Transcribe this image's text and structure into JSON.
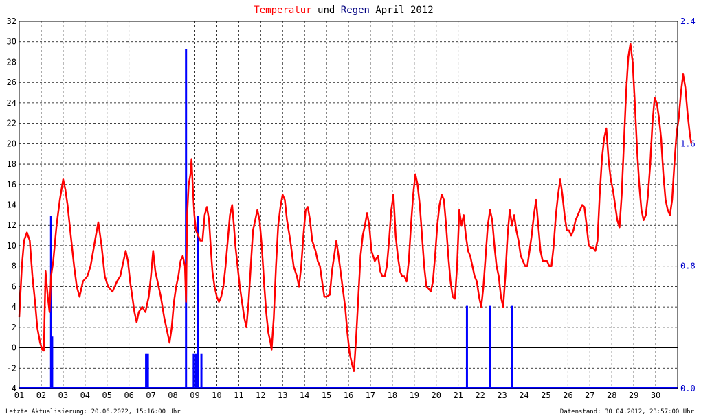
{
  "title": {
    "word1": "Temperatur",
    "word2": " und ",
    "word3": "Regen",
    "word4": " April 2012"
  },
  "footer": {
    "left": "Letzte Aktualisierung: 20.06.2022, 15:16:00 Uhr",
    "right": "Datenstand: 30.04.2012, 23:57:00 Uhr"
  },
  "colors": {
    "temperature": "#ff0000",
    "rain": "#0000ff",
    "title_temperature": "#ff0000",
    "title_rain": "#000080"
  },
  "chart_data": {
    "type": "line",
    "title": "Temperatur und Regen April 2012",
    "grid": true,
    "x_tick_labels": [
      "01",
      "02",
      "03",
      "04",
      "05",
      "06",
      "07",
      "08",
      "09",
      "10",
      "11",
      "12",
      "13",
      "14",
      "15",
      "16",
      "17",
      "18",
      "19",
      "20",
      "21",
      "22",
      "23",
      "24",
      "25",
      "26",
      "27",
      "28",
      "29",
      "30"
    ],
    "x_range_days": [
      1,
      31
    ],
    "y_left": {
      "ticks": [
        -4,
        -2,
        0,
        2,
        4,
        6,
        8,
        10,
        12,
        14,
        16,
        18,
        20,
        22,
        24,
        26,
        28,
        30,
        32
      ],
      "ylim": [
        -4,
        32
      ]
    },
    "y_right": {
      "ticks": [
        "0.0",
        "0.8",
        "1.6",
        "2.4"
      ],
      "ylim": [
        0,
        2.4
      ]
    },
    "series": [
      {
        "name": "Temperatur",
        "axis": "left",
        "points": [
          [
            1.0,
            3.0
          ],
          [
            1.12,
            8.0
          ],
          [
            1.22,
            10.5
          ],
          [
            1.35,
            11.3
          ],
          [
            1.48,
            10.5
          ],
          [
            1.6,
            7.0
          ],
          [
            1.72,
            4.5
          ],
          [
            1.82,
            2.0
          ],
          [
            1.95,
            0.5
          ],
          [
            2.05,
            -0.2
          ],
          [
            2.12,
            -0.3
          ],
          [
            2.2,
            7.5
          ],
          [
            2.3,
            5.0
          ],
          [
            2.38,
            3.5
          ],
          [
            2.45,
            7.0
          ],
          [
            2.55,
            8.5
          ],
          [
            2.7,
            12.0
          ],
          [
            2.85,
            14.5
          ],
          [
            3.0,
            16.5
          ],
          [
            3.1,
            15.5
          ],
          [
            3.2,
            14.0
          ],
          [
            3.35,
            11.0
          ],
          [
            3.5,
            8.0
          ],
          [
            3.62,
            6.0
          ],
          [
            3.75,
            5.0
          ],
          [
            3.9,
            6.5
          ],
          [
            4.1,
            7.0
          ],
          [
            4.25,
            8.0
          ],
          [
            4.45,
            10.5
          ],
          [
            4.6,
            12.3
          ],
          [
            4.75,
            10.0
          ],
          [
            4.9,
            7.0
          ],
          [
            5.05,
            6.0
          ],
          [
            5.25,
            5.5
          ],
          [
            5.45,
            6.5
          ],
          [
            5.6,
            7.0
          ],
          [
            5.75,
            8.5
          ],
          [
            5.85,
            9.5
          ],
          [
            5.95,
            8.5
          ],
          [
            6.05,
            6.5
          ],
          [
            6.15,
            5.0
          ],
          [
            6.25,
            3.5
          ],
          [
            6.35,
            2.5
          ],
          [
            6.45,
            3.5
          ],
          [
            6.6,
            4.0
          ],
          [
            6.75,
            3.5
          ],
          [
            6.9,
            5.0
          ],
          [
            7.0,
            7.0
          ],
          [
            7.1,
            9.5
          ],
          [
            7.2,
            7.5
          ],
          [
            7.3,
            6.5
          ],
          [
            7.45,
            5.0
          ],
          [
            7.6,
            3.0
          ],
          [
            7.75,
            1.5
          ],
          [
            7.85,
            0.5
          ],
          [
            7.95,
            2.0
          ],
          [
            8.05,
            4.5
          ],
          [
            8.15,
            6.0
          ],
          [
            8.25,
            7.0
          ],
          [
            8.35,
            8.5
          ],
          [
            8.45,
            9.0
          ],
          [
            8.55,
            8.0
          ],
          [
            8.6,
            4.5
          ],
          [
            8.65,
            13.0
          ],
          [
            8.72,
            16.0
          ],
          [
            8.8,
            17.0
          ],
          [
            8.85,
            18.5
          ],
          [
            8.9,
            16.0
          ],
          [
            8.98,
            13.0
          ],
          [
            9.05,
            11.5
          ],
          [
            9.15,
            11.0
          ],
          [
            9.25,
            10.5
          ],
          [
            9.35,
            10.5
          ],
          [
            9.45,
            13.0
          ],
          [
            9.55,
            13.8
          ],
          [
            9.65,
            12.5
          ],
          [
            9.72,
            10.0
          ],
          [
            9.8,
            7.5
          ],
          [
            9.9,
            6.0
          ],
          [
            10.0,
            5.0
          ],
          [
            10.1,
            4.5
          ],
          [
            10.2,
            5.0
          ],
          [
            10.3,
            6.0
          ],
          [
            10.4,
            8.0
          ],
          [
            10.5,
            10.5
          ],
          [
            10.6,
            13.0
          ],
          [
            10.7,
            14.0
          ],
          [
            10.78,
            12.0
          ],
          [
            10.85,
            10.0
          ],
          [
            10.95,
            8.0
          ],
          [
            11.05,
            6.0
          ],
          [
            11.15,
            4.5
          ],
          [
            11.25,
            3.0
          ],
          [
            11.35,
            2.0
          ],
          [
            11.45,
            4.5
          ],
          [
            11.55,
            8.0
          ],
          [
            11.65,
            11.5
          ],
          [
            11.75,
            12.5
          ],
          [
            11.85,
            13.5
          ],
          [
            11.95,
            12.5
          ],
          [
            12.05,
            10.0
          ],
          [
            12.15,
            6.5
          ],
          [
            12.25,
            3.5
          ],
          [
            12.35,
            1.5
          ],
          [
            12.45,
            0.5
          ],
          [
            12.5,
            -0.2
          ],
          [
            12.6,
            3.0
          ],
          [
            12.7,
            8.0
          ],
          [
            12.8,
            12.0
          ],
          [
            12.9,
            13.8
          ],
          [
            13.0,
            15.0
          ],
          [
            13.1,
            14.5
          ],
          [
            13.2,
            12.5
          ],
          [
            13.35,
            10.5
          ],
          [
            13.5,
            8.0
          ],
          [
            13.65,
            7.0
          ],
          [
            13.75,
            6.0
          ],
          [
            13.85,
            8.0
          ],
          [
            13.95,
            11.0
          ],
          [
            14.05,
            13.5
          ],
          [
            14.15,
            13.8
          ],
          [
            14.25,
            12.5
          ],
          [
            14.35,
            10.5
          ],
          [
            14.5,
            9.5
          ],
          [
            14.6,
            8.5
          ],
          [
            14.7,
            8.0
          ],
          [
            14.8,
            6.5
          ],
          [
            14.9,
            5.0
          ],
          [
            15.0,
            5.0
          ],
          [
            15.15,
            5.2
          ],
          [
            15.25,
            7.5
          ],
          [
            15.35,
            9.0
          ],
          [
            15.45,
            10.5
          ],
          [
            15.55,
            9.0
          ],
          [
            15.7,
            6.5
          ],
          [
            15.85,
            4.0
          ],
          [
            15.95,
            1.5
          ],
          [
            16.05,
            -0.5
          ],
          [
            16.15,
            -1.5
          ],
          [
            16.25,
            -2.3
          ],
          [
            16.35,
            1.0
          ],
          [
            16.45,
            5.0
          ],
          [
            16.55,
            9.0
          ],
          [
            16.65,
            11.0
          ],
          [
            16.75,
            12.0
          ],
          [
            16.85,
            13.2
          ],
          [
            16.95,
            12.0
          ],
          [
            17.05,
            9.5
          ],
          [
            17.2,
            8.5
          ],
          [
            17.35,
            9.0
          ],
          [
            17.45,
            7.5
          ],
          [
            17.55,
            7.0
          ],
          [
            17.65,
            7.0
          ],
          [
            17.75,
            8.0
          ],
          [
            17.85,
            10.5
          ],
          [
            17.95,
            13.5
          ],
          [
            18.05,
            15.0
          ],
          [
            18.15,
            11.0
          ],
          [
            18.25,
            9.0
          ],
          [
            18.35,
            7.5
          ],
          [
            18.45,
            7.0
          ],
          [
            18.55,
            7.0
          ],
          [
            18.65,
            6.5
          ],
          [
            18.75,
            8.5
          ],
          [
            18.85,
            12.0
          ],
          [
            18.95,
            15.0
          ],
          [
            19.05,
            17.0
          ],
          [
            19.15,
            16.0
          ],
          [
            19.25,
            14.0
          ],
          [
            19.35,
            11.0
          ],
          [
            19.45,
            8.0
          ],
          [
            19.55,
            6.0
          ],
          [
            19.65,
            5.8
          ],
          [
            19.75,
            5.5
          ],
          [
            19.85,
            6.5
          ],
          [
            19.95,
            9.0
          ],
          [
            20.05,
            12.0
          ],
          [
            20.15,
            14.0
          ],
          [
            20.25,
            15.0
          ],
          [
            20.35,
            14.5
          ],
          [
            20.45,
            12.0
          ],
          [
            20.55,
            9.0
          ],
          [
            20.65,
            6.5
          ],
          [
            20.75,
            5.0
          ],
          [
            20.85,
            4.8
          ],
          [
            20.95,
            8.0
          ],
          [
            21.05,
            13.5
          ],
          [
            21.15,
            12.0
          ],
          [
            21.25,
            13.0
          ],
          [
            21.35,
            11.0
          ],
          [
            21.45,
            9.5
          ],
          [
            21.55,
            9.0
          ],
          [
            21.65,
            8.0
          ],
          [
            21.75,
            7.0
          ],
          [
            21.85,
            6.5
          ],
          [
            21.95,
            5.0
          ],
          [
            22.05,
            4.0
          ],
          [
            22.15,
            6.0
          ],
          [
            22.25,
            9.0
          ],
          [
            22.35,
            12.0
          ],
          [
            22.45,
            13.5
          ],
          [
            22.55,
            12.5
          ],
          [
            22.65,
            10.0
          ],
          [
            22.75,
            8.0
          ],
          [
            22.85,
            7.0
          ],
          [
            22.95,
            5.0
          ],
          [
            23.05,
            4.0
          ],
          [
            23.15,
            7.0
          ],
          [
            23.25,
            11.0
          ],
          [
            23.35,
            13.5
          ],
          [
            23.45,
            12.0
          ],
          [
            23.55,
            13.0
          ],
          [
            23.65,
            11.5
          ],
          [
            23.75,
            10.5
          ],
          [
            23.85,
            9.0
          ],
          [
            23.95,
            8.5
          ],
          [
            24.05,
            8.0
          ],
          [
            24.15,
            8.0
          ],
          [
            24.25,
            9.5
          ],
          [
            24.35,
            11.0
          ],
          [
            24.45,
            13.0
          ],
          [
            24.55,
            14.5
          ],
          [
            24.65,
            12.0
          ],
          [
            24.75,
            9.5
          ],
          [
            24.85,
            8.5
          ],
          [
            24.95,
            8.5
          ],
          [
            25.05,
            8.5
          ],
          [
            25.15,
            8.0
          ],
          [
            25.25,
            8.0
          ],
          [
            25.35,
            10.0
          ],
          [
            25.45,
            13.0
          ],
          [
            25.55,
            15.0
          ],
          [
            25.65,
            16.5
          ],
          [
            25.75,
            15.0
          ],
          [
            25.85,
            13.0
          ],
          [
            25.95,
            11.5
          ],
          [
            26.05,
            11.5
          ],
          [
            26.15,
            11.0
          ],
          [
            26.25,
            11.5
          ],
          [
            26.35,
            12.5
          ],
          [
            26.45,
            13.0
          ],
          [
            26.55,
            13.5
          ],
          [
            26.65,
            14.0
          ],
          [
            26.75,
            13.8
          ],
          [
            26.85,
            12.0
          ],
          [
            26.95,
            10.0
          ],
          [
            27.05,
            9.8
          ],
          [
            27.15,
            9.8
          ],
          [
            27.25,
            9.5
          ],
          [
            27.35,
            10.5
          ],
          [
            27.45,
            15.0
          ],
          [
            27.55,
            18.5
          ],
          [
            27.65,
            20.5
          ],
          [
            27.75,
            21.5
          ],
          [
            27.85,
            18.5
          ],
          [
            27.95,
            16.5
          ],
          [
            28.05,
            15.5
          ],
          [
            28.15,
            14.0
          ],
          [
            28.25,
            12.5
          ],
          [
            28.35,
            11.8
          ],
          [
            28.45,
            15.0
          ],
          [
            28.55,
            20.0
          ],
          [
            28.65,
            25.0
          ],
          [
            28.75,
            28.5
          ],
          [
            28.85,
            29.8
          ],
          [
            28.95,
            28.0
          ],
          [
            29.05,
            24.0
          ],
          [
            29.15,
            19.5
          ],
          [
            29.25,
            16.0
          ],
          [
            29.35,
            13.5
          ],
          [
            29.45,
            12.5
          ],
          [
            29.55,
            13.0
          ],
          [
            29.65,
            15.0
          ],
          [
            29.75,
            18.0
          ],
          [
            29.85,
            22.0
          ],
          [
            29.95,
            24.5
          ],
          [
            30.05,
            24.0
          ],
          [
            30.15,
            22.5
          ],
          [
            30.25,
            20.5
          ],
          [
            30.35,
            17.0
          ],
          [
            30.45,
            14.5
          ],
          [
            30.55,
            13.5
          ],
          [
            30.65,
            13.0
          ],
          [
            30.75,
            14.5
          ],
          [
            30.85,
            18.0
          ],
          [
            30.95,
            21.0
          ],
          [
            31.05,
            22.5
          ],
          [
            31.15,
            25.0
          ],
          [
            31.25,
            26.8
          ],
          [
            31.35,
            25.5
          ],
          [
            31.45,
            23.0
          ],
          [
            31.55,
            21.0
          ],
          [
            31.62,
            20.0
          ]
        ]
      },
      {
        "name": "Regen",
        "axis": "right",
        "bars": [
          [
            2.45,
            1.13
          ],
          [
            2.5,
            0.34
          ],
          [
            6.78,
            0.23
          ],
          [
            6.86,
            0.23
          ],
          [
            8.6,
            2.22
          ],
          [
            8.95,
            0.23
          ],
          [
            9.05,
            0.23
          ],
          [
            9.15,
            1.13
          ],
          [
            9.3,
            0.23
          ]
        ],
        "bars_late": [
          [
            21.4,
            0.54
          ],
          [
            22.45,
            0.54
          ],
          [
            23.45,
            0.54
          ]
        ]
      }
    ]
  }
}
